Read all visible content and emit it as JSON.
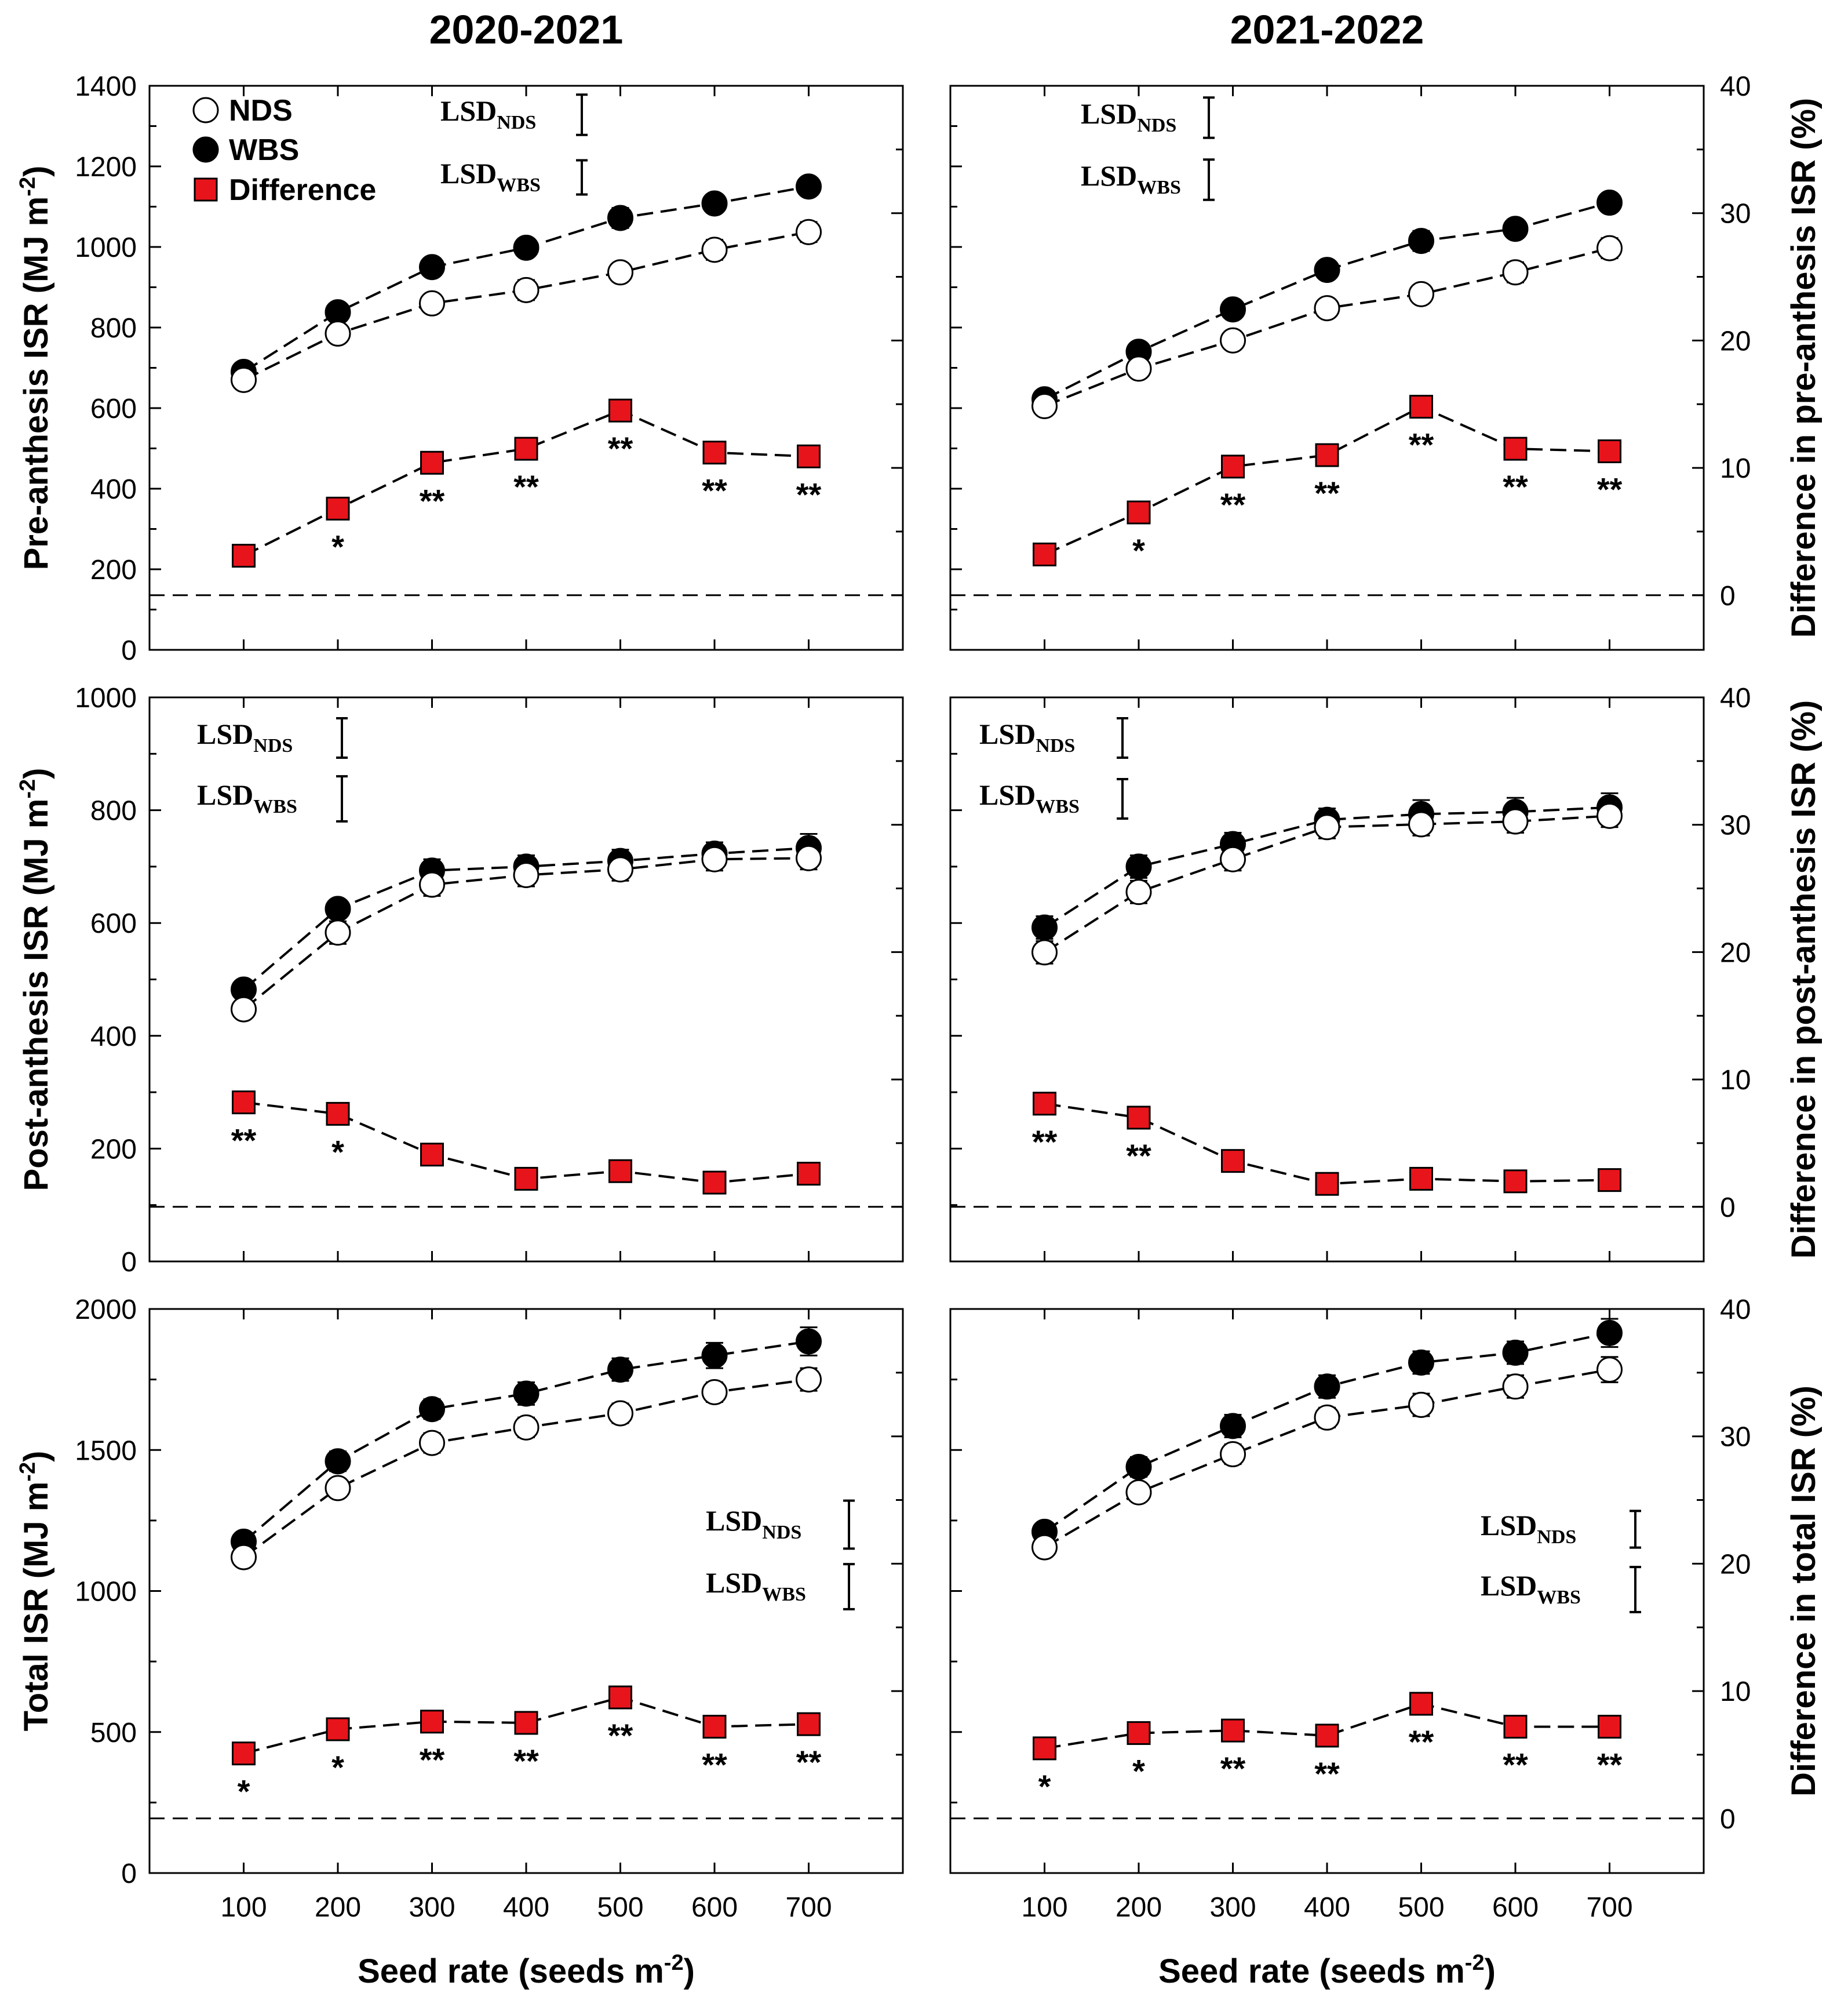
{
  "chart_data": {
    "type": "line",
    "columns": [
      "2020-2021",
      "2021-2022"
    ],
    "x": [
      100,
      200,
      300,
      400,
      500,
      600,
      700
    ],
    "x_ticks": [
      "100",
      "200",
      "300",
      "400",
      "500",
      "600",
      "700"
    ],
    "xlabel_main": "Seed rate (seeds m",
    "xlabel_sup": "-2",
    "xlabel_end": ")",
    "legend": {
      "nds": "NDS",
      "wbs": "WBS",
      "diff": "Difference"
    },
    "lsd": {
      "word": "LSD",
      "nds_sub": "NDS",
      "wbs_sub": "WBS"
    },
    "colors": {
      "diff_fill": "#e8141b",
      "nds_fill": "#ffffff",
      "wbs_fill": "#000000"
    },
    "rows": [
      {
        "left_title_main": "Pre-anthesis ISR (MJ m",
        "left_title_sup": "-2",
        "left_title_end": ")",
        "right_title": "Difference in pre-anthesis ISR (%)",
        "ylim": [
          0,
          1400
        ],
        "y_ticks": [
          "0",
          "200",
          "400",
          "600",
          "800",
          "1000",
          "1200",
          "1400"
        ],
        "y2lim": [
          -4.29,
          40
        ],
        "y2_ticks": [
          "0",
          "10",
          "20",
          "30",
          "40"
        ],
        "panels": [
          {
            "nds": [
              670,
              785,
              860,
              893,
              937,
              993,
              1037
            ],
            "nds_err": [
              15,
              20,
              20,
              25,
              20,
              25,
              25
            ],
            "wbs": [
              690,
              838,
              950,
              998,
              1072,
              1108,
              1150
            ],
            "wbs_err": [
              15,
              20,
              20,
              20,
              25,
              20,
              20
            ],
            "diff": [
              3.1,
              6.8,
              10.4,
              11.5,
              14.5,
              11.2,
              10.9
            ],
            "sig": [
              "",
              "*",
              "**",
              "**",
              "**",
              "**",
              "**"
            ],
            "lsd_nds": 100,
            "lsd_wbs": 85
          },
          {
            "nds": [
              605,
              698,
              768,
              848,
              883,
              937,
              997
            ],
            "nds_err": [
              15,
              20,
              20,
              20,
              20,
              25,
              25
            ],
            "wbs": [
              622,
              740,
              845,
              943,
              1015,
              1045,
              1110
            ],
            "wbs_err": [
              15,
              20,
              20,
              15,
              25,
              20,
              20
            ],
            "diff": [
              3.2,
              6.5,
              10.1,
              11.0,
              14.8,
              11.5,
              11.3
            ],
            "sig": [
              "",
              "*",
              "**",
              "**",
              "**",
              "**",
              "**"
            ],
            "lsd_nds": 100,
            "lsd_wbs": 100
          }
        ]
      },
      {
        "left_title_main": "Post-anthesis ISR (MJ m",
        "left_title_sup": "-2",
        "left_title_end": ")",
        "right_title": "Difference in post-anthesis ISR (%)",
        "ylim": [
          0,
          1000
        ],
        "y_ticks": [
          "0",
          "200",
          "400",
          "600",
          "800",
          "1000"
        ],
        "y2lim": [
          -4.29,
          40
        ],
        "y2_ticks": [
          "0",
          "10",
          "20",
          "30",
          "40"
        ],
        "panels": [
          {
            "nds": [
              447,
              583,
              668,
              685,
              695,
              713,
              715
            ],
            "nds_err": [
              15,
              20,
              20,
              20,
              20,
              20,
              20
            ],
            "wbs": [
              482,
              625,
              693,
              700,
              710,
              723,
              733
            ],
            "wbs_err": [
              15,
              15,
              20,
              20,
              20,
              20,
              25
            ],
            "diff": [
              8.2,
              7.3,
              4.1,
              2.2,
              2.8,
              1.9,
              2.6
            ],
            "sig": [
              "**",
              "*",
              "",
              "",
              "",
              "",
              ""
            ],
            "lsd_nds": 70,
            "lsd_wbs": 80
          },
          {
            "nds": [
              548,
              655,
              713,
              770,
              775,
              780,
              790
            ],
            "nds_err": [
              20,
              20,
              20,
              20,
              20,
              20,
              20
            ],
            "wbs": [
              592,
              700,
              740,
              783,
              793,
              797,
              805
            ],
            "wbs_err": [
              20,
              20,
              20,
              20,
              25,
              25,
              25
            ],
            "diff": [
              8.1,
              7.0,
              3.6,
              1.8,
              2.2,
              2.0,
              2.1
            ],
            "sig": [
              "**",
              "**",
              "",
              "",
              "",
              "",
              ""
            ],
            "lsd_nds": 70,
            "lsd_wbs": 70
          }
        ]
      },
      {
        "left_title_main": "Total ISR (MJ m",
        "left_title_sup": "-2",
        "left_title_end": ")",
        "right_title": "Difference in total ISR (%)",
        "ylim": [
          0,
          2000
        ],
        "y_ticks": [
          "0",
          "500",
          "1000",
          "1500",
          "2000"
        ],
        "y2lim": [
          -4.29,
          40
        ],
        "y2_ticks": [
          "0",
          "10",
          "20",
          "30",
          "40"
        ],
        "panels": [
          {
            "nds": [
              1120,
              1365,
              1525,
              1580,
              1630,
              1705,
              1750
            ],
            "nds_err": [
              20,
              30,
              35,
              35,
              35,
              35,
              40
            ],
            "wbs": [
              1175,
              1460,
              1645,
              1700,
              1785,
              1835,
              1885
            ],
            "wbs_err": [
              20,
              35,
              35,
              40,
              40,
              45,
              50
            ],
            "diff": [
              5.1,
              7.0,
              7.6,
              7.5,
              9.5,
              7.2,
              7.4
            ],
            "sig": [
              "*",
              "*",
              "**",
              "**",
              "**",
              "**",
              "**"
            ],
            "lsd_nds": 170,
            "lsd_wbs": 160
          },
          {
            "nds": [
              1155,
              1350,
              1485,
              1615,
              1660,
              1725,
              1785
            ],
            "nds_err": [
              20,
              30,
              35,
              35,
              40,
              40,
              45
            ],
            "wbs": [
              1210,
              1440,
              1585,
              1725,
              1810,
              1845,
              1915
            ],
            "wbs_err": [
              20,
              35,
              40,
              40,
              40,
              40,
              50
            ],
            "diff": [
              5.5,
              6.7,
              6.9,
              6.5,
              9.0,
              7.2,
              7.2
            ],
            "sig": [
              "*",
              "*",
              "**",
              "**",
              "**",
              "**",
              "**"
            ],
            "lsd_nds": 130,
            "lsd_wbs": 160
          }
        ]
      }
    ]
  }
}
